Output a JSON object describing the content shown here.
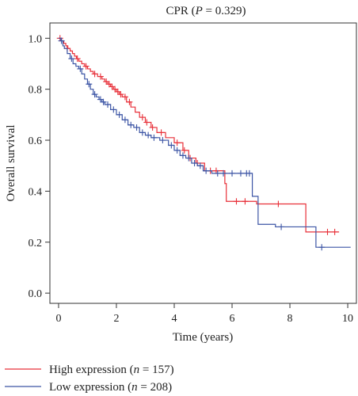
{
  "chart_data": {
    "type": "line",
    "title": {
      "prefix": "CPR (",
      "pvar": "P",
      "suffix": " = 0.329)"
    },
    "xlabel": "Time (years)",
    "ylabel": "Overall survival",
    "xlim": [
      -0.3,
      10.3
    ],
    "ylim": [
      -0.04,
      1.06
    ],
    "x_ticks": [
      0,
      2,
      4,
      6,
      8,
      10
    ],
    "x_tick_labels": [
      "0",
      "2",
      "4",
      "6",
      "8",
      "10"
    ],
    "y_ticks": [
      0.0,
      0.2,
      0.4,
      0.6,
      0.8,
      1.0
    ],
    "y_tick_labels": [
      "0.0",
      "0.2",
      "0.4",
      "0.6",
      "0.8",
      "1.0"
    ],
    "grid": false,
    "legend_position": "bottom-left, below plot",
    "series": [
      {
        "name_prefix": "High expression (",
        "name_var": "n",
        "name_suffix": " = 157)",
        "color": "#e8313a",
        "steps": [
          [
            0,
            1.0
          ],
          [
            0.1,
            0.99
          ],
          [
            0.18,
            0.98
          ],
          [
            0.25,
            0.97
          ],
          [
            0.32,
            0.96
          ],
          [
            0.4,
            0.95
          ],
          [
            0.48,
            0.94
          ],
          [
            0.55,
            0.93
          ],
          [
            0.62,
            0.92
          ],
          [
            0.7,
            0.91
          ],
          [
            0.8,
            0.9
          ],
          [
            0.9,
            0.89
          ],
          [
            1.0,
            0.88
          ],
          [
            1.1,
            0.87
          ],
          [
            1.2,
            0.86
          ],
          [
            1.35,
            0.85
          ],
          [
            1.5,
            0.84
          ],
          [
            1.6,
            0.83
          ],
          [
            1.7,
            0.82
          ],
          [
            1.8,
            0.81
          ],
          [
            1.9,
            0.8
          ],
          [
            2.0,
            0.79
          ],
          [
            2.1,
            0.78
          ],
          [
            2.2,
            0.77
          ],
          [
            2.35,
            0.75
          ],
          [
            2.5,
            0.73
          ],
          [
            2.65,
            0.71
          ],
          [
            2.8,
            0.69
          ],
          [
            3.0,
            0.67
          ],
          [
            3.2,
            0.65
          ],
          [
            3.4,
            0.63
          ],
          [
            3.7,
            0.61
          ],
          [
            4.0,
            0.59
          ],
          [
            4.3,
            0.56
          ],
          [
            4.5,
            0.53
          ],
          [
            4.75,
            0.51
          ],
          [
            5.05,
            0.48
          ],
          [
            5.75,
            0.43
          ],
          [
            5.8,
            0.36
          ],
          [
            6.85,
            0.35
          ],
          [
            8.55,
            0.24
          ],
          [
            9.7,
            0.24
          ]
        ],
        "censored": [
          [
            0.05,
            1.0
          ],
          [
            0.3,
            0.96
          ],
          [
            0.65,
            0.92
          ],
          [
            0.95,
            0.89
          ],
          [
            1.25,
            0.86
          ],
          [
            1.45,
            0.85
          ],
          [
            1.65,
            0.83
          ],
          [
            1.75,
            0.82
          ],
          [
            1.85,
            0.81
          ],
          [
            1.95,
            0.8
          ],
          [
            2.05,
            0.79
          ],
          [
            2.15,
            0.78
          ],
          [
            2.3,
            0.77
          ],
          [
            2.45,
            0.75
          ],
          [
            2.9,
            0.69
          ],
          [
            3.05,
            0.67
          ],
          [
            3.25,
            0.65
          ],
          [
            3.55,
            0.63
          ],
          [
            4.1,
            0.59
          ],
          [
            4.35,
            0.56
          ],
          [
            4.55,
            0.53
          ],
          [
            4.8,
            0.51
          ],
          [
            5.25,
            0.48
          ],
          [
            5.45,
            0.48
          ],
          [
            6.15,
            0.36
          ],
          [
            6.45,
            0.36
          ],
          [
            7.6,
            0.35
          ],
          [
            9.3,
            0.24
          ],
          [
            9.55,
            0.24
          ]
        ]
      },
      {
        "name_prefix": "Low expression (",
        "name_var": "n",
        "name_suffix": " = 208)",
        "color": "#3c55a5",
        "steps": [
          [
            0,
            1.0
          ],
          [
            0.08,
            0.99
          ],
          [
            0.15,
            0.97
          ],
          [
            0.2,
            0.96
          ],
          [
            0.3,
            0.94
          ],
          [
            0.4,
            0.92
          ],
          [
            0.5,
            0.9
          ],
          [
            0.6,
            0.89
          ],
          [
            0.7,
            0.88
          ],
          [
            0.8,
            0.86
          ],
          [
            0.9,
            0.84
          ],
          [
            1.0,
            0.82
          ],
          [
            1.1,
            0.8
          ],
          [
            1.2,
            0.78
          ],
          [
            1.3,
            0.77
          ],
          [
            1.4,
            0.76
          ],
          [
            1.5,
            0.75
          ],
          [
            1.6,
            0.74
          ],
          [
            1.8,
            0.72
          ],
          [
            2.0,
            0.7
          ],
          [
            2.2,
            0.68
          ],
          [
            2.4,
            0.66
          ],
          [
            2.6,
            0.65
          ],
          [
            2.8,
            0.63
          ],
          [
            3.0,
            0.62
          ],
          [
            3.2,
            0.61
          ],
          [
            3.5,
            0.6
          ],
          [
            3.8,
            0.58
          ],
          [
            4.0,
            0.56
          ],
          [
            4.2,
            0.54
          ],
          [
            4.4,
            0.53
          ],
          [
            4.6,
            0.51
          ],
          [
            4.8,
            0.5
          ],
          [
            5.0,
            0.48
          ],
          [
            5.3,
            0.47
          ],
          [
            6.7,
            0.38
          ],
          [
            6.9,
            0.27
          ],
          [
            7.5,
            0.26
          ],
          [
            8.9,
            0.18
          ],
          [
            10.1,
            0.18
          ]
        ],
        "censored": [
          [
            0.1,
            0.99
          ],
          [
            0.45,
            0.92
          ],
          [
            0.75,
            0.88
          ],
          [
            1.05,
            0.82
          ],
          [
            1.25,
            0.78
          ],
          [
            1.45,
            0.76
          ],
          [
            1.55,
            0.75
          ],
          [
            1.7,
            0.74
          ],
          [
            1.9,
            0.72
          ],
          [
            2.1,
            0.7
          ],
          [
            2.3,
            0.68
          ],
          [
            2.5,
            0.66
          ],
          [
            2.7,
            0.65
          ],
          [
            2.9,
            0.63
          ],
          [
            3.1,
            0.62
          ],
          [
            3.3,
            0.61
          ],
          [
            3.6,
            0.6
          ],
          [
            3.9,
            0.58
          ],
          [
            4.1,
            0.56
          ],
          [
            4.3,
            0.54
          ],
          [
            4.5,
            0.53
          ],
          [
            4.7,
            0.51
          ],
          [
            4.9,
            0.5
          ],
          [
            5.1,
            0.48
          ],
          [
            5.5,
            0.47
          ],
          [
            5.7,
            0.47
          ],
          [
            6.0,
            0.47
          ],
          [
            6.3,
            0.47
          ],
          [
            6.5,
            0.47
          ],
          [
            6.6,
            0.47
          ],
          [
            7.7,
            0.26
          ],
          [
            9.1,
            0.18
          ]
        ]
      }
    ]
  }
}
